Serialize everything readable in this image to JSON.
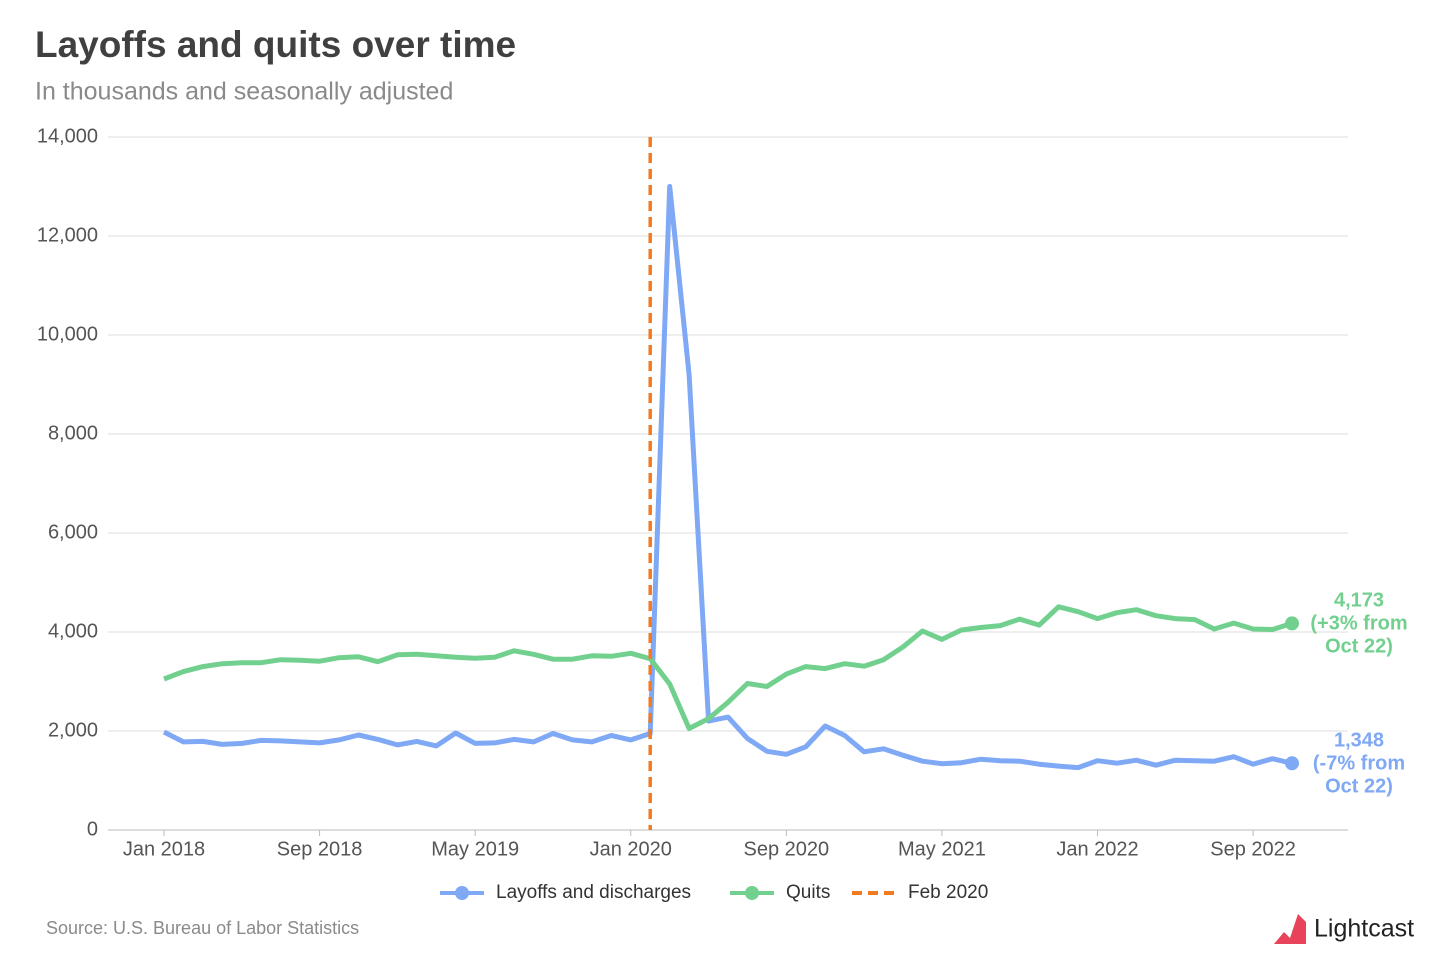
{
  "chart_data": {
    "type": "line",
    "title": "Layoffs and quits over time",
    "subtitle": "In thousands and seasonally adjusted",
    "categories": [
      "Jan 2018",
      null,
      null,
      null,
      null,
      null,
      null,
      null,
      "Sep 2018",
      null,
      null,
      null,
      null,
      null,
      null,
      null,
      "May 2019",
      null,
      null,
      null,
      null,
      null,
      null,
      null,
      "Jan 2020",
      null,
      null,
      null,
      null,
      null,
      null,
      null,
      "Sep 2020",
      null,
      null,
      null,
      null,
      null,
      null,
      null,
      "May 2021",
      null,
      null,
      null,
      null,
      null,
      null,
      null,
      "Jan 2022",
      null,
      null,
      null,
      null,
      null,
      null,
      null,
      "Sep 2022",
      null,
      null
    ],
    "series": [
      {
        "name": "Layoffs and discharges",
        "color": "#7fa8f5",
        "values": [
          1980,
          1780,
          1790,
          1730,
          1750,
          1810,
          1800,
          1780,
          1760,
          1820,
          1920,
          1830,
          1720,
          1790,
          1700,
          1960,
          1750,
          1760,
          1830,
          1780,
          1950,
          1820,
          1780,
          1910,
          1820,
          1950,
          13000,
          9200,
          2200,
          2280,
          1850,
          1590,
          1530,
          1680,
          2100,
          1910,
          1580,
          1640,
          1510,
          1390,
          1340,
          1360,
          1430,
          1400,
          1390,
          1330,
          1290,
          1260,
          1400,
          1350,
          1410,
          1310,
          1410,
          1400,
          1390,
          1480,
          1330,
          1440,
          1348
        ],
        "end_label": [
          "1,348",
          "(-7% from",
          "Oct 22)"
        ]
      },
      {
        "name": "Quits",
        "color": "#72d08f",
        "values": [
          3050,
          3200,
          3300,
          3360,
          3380,
          3380,
          3440,
          3430,
          3410,
          3480,
          3500,
          3400,
          3540,
          3550,
          3520,
          3490,
          3470,
          3490,
          3620,
          3550,
          3450,
          3450,
          3520,
          3510,
          3570,
          3460,
          2950,
          2050,
          2250,
          2580,
          2960,
          2900,
          3150,
          3300,
          3260,
          3360,
          3310,
          3440,
          3700,
          4020,
          3850,
          4040,
          4090,
          4130,
          4260,
          4140,
          4510,
          4410,
          4270,
          4390,
          4450,
          4330,
          4270,
          4250,
          4060,
          4180,
          4060,
          4050,
          4173
        ],
        "end_label": [
          "4,173",
          "(+3% from",
          "Oct 22)"
        ]
      }
    ],
    "vline": {
      "name": "Feb 2020",
      "at": 25,
      "color": "#f47a20"
    },
    "ylim": [
      0,
      14000
    ],
    "yticks": [
      0,
      {
        "value": 2000,
        "label": "2,000"
      },
      {
        "value": 4000,
        "label": "4,000"
      },
      {
        "value": 6000,
        "label": "6,000"
      },
      {
        "value": 8000,
        "label": "8,000"
      },
      {
        "value": 10000,
        "label": "10,000"
      },
      {
        "value": 12000,
        "label": "12,000"
      },
      {
        "value": 14000,
        "label": "14,000"
      }
    ],
    "grid": true,
    "source": "Source:  U.S. Bureau of Labor Statistics",
    "logo": "Lightcast"
  }
}
